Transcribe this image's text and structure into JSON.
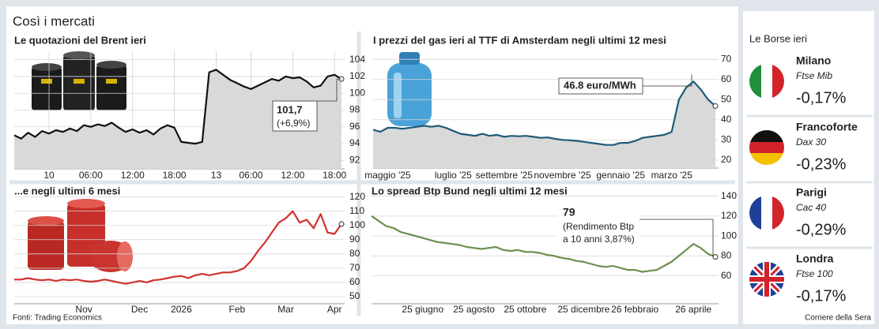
{
  "title": "Così i mercati",
  "source": "Fonti: Trading Economics",
  "credit": "Corriere della Sera",
  "chart_data": [
    {
      "type": "line",
      "title": "Le quotazioni del Brent ieri",
      "color": "#111111",
      "area": true,
      "grid": true,
      "categories": [
        null,
        null,
        null,
        null,
        null,
        "10",
        null,
        null,
        null,
        null,
        null,
        "06:00",
        null,
        null,
        null,
        null,
        null,
        "12:00",
        null,
        null,
        null,
        null,
        null,
        "18:00",
        null,
        null,
        null,
        null,
        null,
        "13",
        null,
        null,
        null,
        null,
        "06:00",
        null,
        null,
        null,
        null,
        null,
        "12:00",
        null,
        null,
        null,
        null,
        null,
        "18:00",
        null
      ],
      "values": [
        95,
        94.6,
        95.3,
        94.8,
        95.5,
        95.2,
        95.6,
        95.4,
        95.8,
        95.5,
        96.2,
        96,
        96.3,
        96.1,
        96.5,
        95.9,
        95.4,
        95.7,
        95.3,
        95.6,
        95.1,
        95.8,
        96.2,
        95.9,
        94.2,
        94.1,
        94,
        94.2,
        102.5,
        102.8,
        102.2,
        101.6,
        101.2,
        100.8,
        100.5,
        100.9,
        101.3,
        101.7,
        101.5,
        102,
        101.8,
        101.9,
        101.4,
        100.7,
        100.9,
        102,
        102.2,
        101.7
      ],
      "ylim": [
        91,
        105
      ],
      "yticks": [
        92,
        94,
        96,
        98,
        100,
        102,
        104
      ],
      "annotations": [
        "101,7",
        "(+6,9%)"
      ]
    },
    {
      "type": "line",
      "title": "I prezzi del gas ieri al TTF di Amsterdam negli ultimi 12 mesi",
      "color": "#1e5a78",
      "area": true,
      "grid": true,
      "categories": [
        null,
        null,
        "maggio '25",
        null,
        null,
        null,
        null,
        null,
        null,
        null,
        null,
        "luglio '25",
        null,
        null,
        null,
        null,
        null,
        null,
        "settembre '25",
        null,
        null,
        null,
        null,
        null,
        null,
        null,
        "novembre '25",
        null,
        null,
        null,
        null,
        null,
        null,
        null,
        "gennaio '25",
        null,
        null,
        null,
        null,
        null,
        null,
        "marzo '25",
        null,
        null,
        null,
        null,
        null,
        null
      ],
      "values": [
        35,
        34,
        36,
        36,
        35.5,
        36,
        36.5,
        37,
        36.5,
        37,
        36,
        34.5,
        33,
        32.5,
        32,
        33,
        32,
        32.5,
        31.5,
        32,
        31.8,
        32,
        31.5,
        31,
        31.2,
        30.5,
        30,
        29.8,
        29.5,
        29,
        28.5,
        28,
        27.5,
        27.5,
        28.5,
        28.5,
        29.5,
        31,
        31.5,
        32,
        32.5,
        34,
        50,
        56,
        59,
        55,
        50,
        46.8
      ],
      "ylim": [
        16,
        74
      ],
      "yticks": [
        20,
        30,
        40,
        50,
        60,
        70
      ],
      "annotations": [
        "46.8 euro/MWh"
      ]
    },
    {
      "type": "line",
      "title": "...e negli ultimi 6 mesi",
      "color": "#d0312d",
      "area": false,
      "grid": true,
      "categories": [
        null,
        null,
        null,
        null,
        null,
        null,
        null,
        null,
        null,
        null,
        "Nov",
        null,
        null,
        null,
        null,
        null,
        null,
        null,
        "Dec",
        null,
        null,
        null,
        null,
        null,
        "2026",
        null,
        null,
        null,
        null,
        null,
        null,
        null,
        "Feb",
        null,
        null,
        null,
        null,
        null,
        null,
        "Mar",
        null,
        null,
        null,
        null,
        null,
        null,
        "Apr",
        null
      ],
      "values": [
        62,
        62,
        63,
        62,
        61.5,
        62,
        61,
        62,
        61.5,
        62,
        61,
        60.5,
        61,
        62,
        61,
        60,
        59,
        60,
        61,
        60,
        61.5,
        62,
        63,
        64,
        64.5,
        63,
        65,
        66,
        65,
        66,
        67,
        67,
        68,
        70,
        75,
        82,
        88,
        95,
        102,
        105,
        110,
        102,
        104,
        98,
        108,
        95,
        94,
        101
      ],
      "ylim": [
        45,
        122
      ],
      "yticks": [
        50,
        60,
        70,
        80,
        90,
        100,
        110,
        120
      ]
    },
    {
      "type": "line",
      "title": "Lo spread Btp Bund negli ultimi 12 mesi",
      "color": "#6b8f4e",
      "area": false,
      "grid": true,
      "categories": [
        null,
        null,
        null,
        null,
        null,
        null,
        null,
        "25 giugno",
        null,
        null,
        null,
        null,
        null,
        null,
        "25 agosto",
        null,
        null,
        null,
        null,
        null,
        null,
        "25 ottobre",
        null,
        null,
        null,
        null,
        null,
        null,
        null,
        "25 dicembre",
        null,
        null,
        null,
        null,
        null,
        null,
        "26 febbraio",
        null,
        null,
        null,
        null,
        null,
        null,
        null,
        "26 aprile",
        null,
        null,
        null
      ],
      "values": [
        120,
        115,
        110,
        108,
        104,
        102,
        100,
        98,
        96,
        94,
        93,
        92,
        91,
        89,
        88,
        87,
        88,
        89,
        86,
        85,
        86,
        84,
        84,
        83,
        81,
        80,
        78,
        77,
        75,
        74,
        72,
        70,
        69,
        70,
        68,
        66,
        66,
        64,
        65,
        66,
        70,
        74,
        80,
        86,
        92,
        88,
        82,
        79
      ],
      "ylim": [
        32,
        146
      ],
      "yticks": [
        60,
        80,
        100,
        120,
        140
      ],
      "annotations": [
        "79",
        "(Rendimento Btp",
        "a 10 anni 3,87%)"
      ]
    }
  ],
  "sidebar": {
    "title": "Le Borse ieri",
    "markets": [
      {
        "city": "Milano",
        "index": "Ftse Mib",
        "change": "-0,17%"
      },
      {
        "city": "Francoforte",
        "index": "Dax 30",
        "change": "-0,23%"
      },
      {
        "city": "Parigi",
        "index": "Cac 40",
        "change": "-0,29%"
      },
      {
        "city": "Londra",
        "index": "Ftse 100",
        "change": "-0,17%"
      }
    ]
  }
}
